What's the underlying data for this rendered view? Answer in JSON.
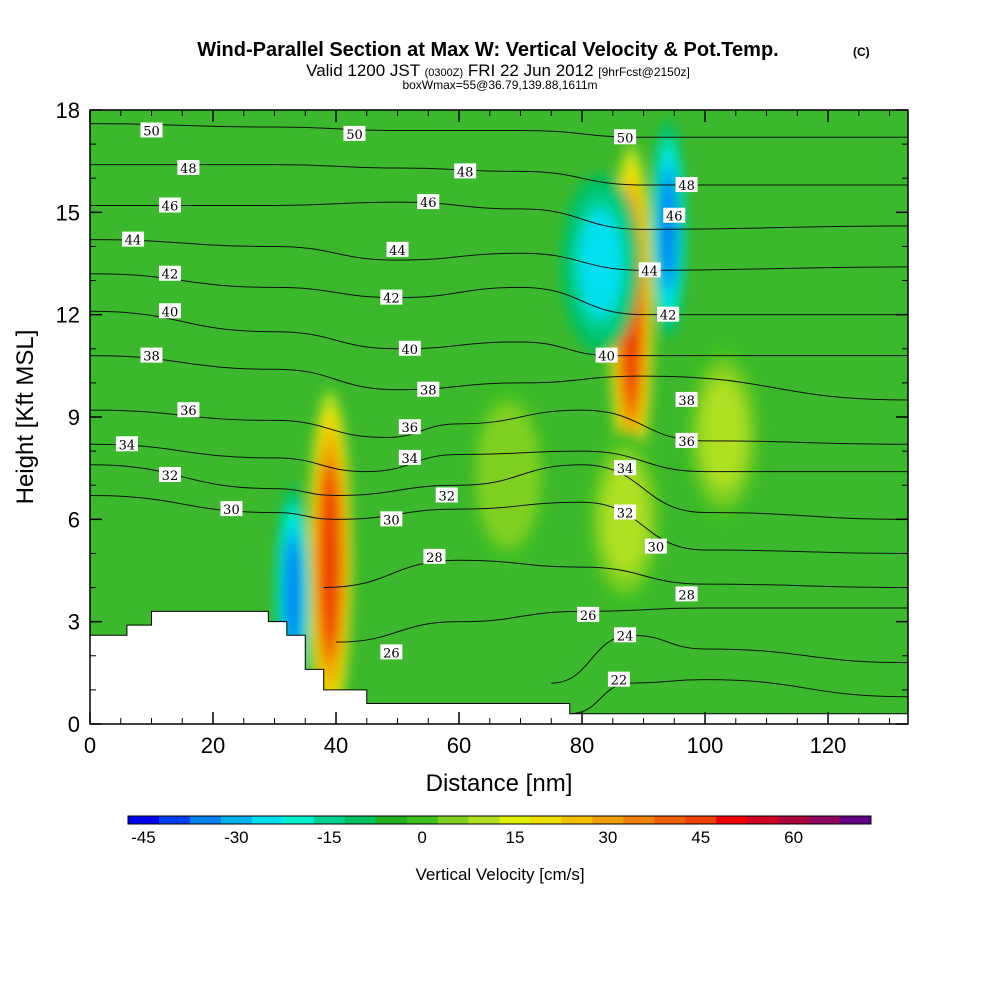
{
  "chart_data": {
    "type": "heatmap",
    "title": "Wind-Parallel Section at Max W: Vertical Velocity & Pot.Temp.",
    "title_mark": "(C)",
    "subtitle": {
      "valid_prefix": "Valid 1200 JST",
      "utc": "(0300Z)",
      "date": "FRI 22 Jun 2012",
      "forecast": "[9hrFcst@2150z]"
    },
    "box_note": "boxWmax=55@36.79,139.88,1611m",
    "xlabel": "Distance [nm]",
    "ylabel": "Height [Kft MSL]",
    "xlim": [
      0,
      133
    ],
    "ylim": [
      0,
      18
    ],
    "x_ticks": [
      0,
      20,
      40,
      60,
      80,
      100,
      120
    ],
    "y_ticks": [
      0,
      3,
      6,
      9,
      12,
      15,
      18
    ],
    "colorbar": {
      "label": "Vertical Velocity [cm/s]",
      "levels": [
        -45,
        -40,
        -35,
        -30,
        -25,
        -20,
        -15,
        -10,
        -5,
        0,
        5,
        10,
        15,
        20,
        25,
        30,
        35,
        40,
        45,
        50,
        55,
        60,
        65,
        70
      ],
      "tick_labels": [
        "-45",
        "-30",
        "-15",
        "0",
        "15",
        "30",
        "45",
        "60"
      ],
      "colors": [
        "#0000f0",
        "#0040f0",
        "#0080f0",
        "#00b0f0",
        "#00e0f0",
        "#00f0d0",
        "#00d090",
        "#00c060",
        "#20b020",
        "#40c020",
        "#80d020",
        "#b0e020",
        "#e0f000",
        "#f0e000",
        "#f0c000",
        "#f0a000",
        "#f08000",
        "#f06000",
        "#f04000",
        "#f00000",
        "#d00020",
        "#b00040",
        "#900060",
        "#600080"
      ]
    },
    "vertical_velocity_features": [
      {
        "label": "updraft",
        "x": 39,
        "y": 4.8,
        "peak": 55
      },
      {
        "label": "downdraft",
        "x": 33,
        "y": 3.8,
        "peak": -35
      },
      {
        "label": "updraft",
        "x": 88,
        "y": 12,
        "peak": 55
      },
      {
        "label": "downdraft",
        "x": 83,
        "y": 13.5,
        "peak": -30
      },
      {
        "label": "downdraft",
        "x": 94,
        "y": 14.5,
        "peak": -35
      },
      {
        "label": "weak updraft",
        "x": 87,
        "y": 6,
        "peak": 15
      },
      {
        "label": "weak updraft",
        "x": 103,
        "y": 8.5,
        "peak": 15
      },
      {
        "label": "weak updraft",
        "x": 68,
        "y": 7.3,
        "peak": 12
      }
    ],
    "potential_temperature_contours": [
      {
        "value": 22,
        "heights": [
          [
            78,
            0.3
          ],
          [
            88,
            1.2
          ],
          [
            100,
            1.3
          ],
          [
            133,
            0.8
          ]
        ]
      },
      {
        "value": 24,
        "heights": [
          [
            75,
            1.2
          ],
          [
            88,
            2.6
          ],
          [
            100,
            2.2
          ],
          [
            133,
            1.8
          ]
        ]
      },
      {
        "value": 26,
        "heights": [
          [
            40,
            2.4
          ],
          [
            60,
            3.0
          ],
          [
            80,
            3.3
          ],
          [
            100,
            3.4
          ],
          [
            133,
            3.4
          ]
        ]
      },
      {
        "value": 28,
        "heights": [
          [
            38,
            4.0
          ],
          [
            60,
            4.8
          ],
          [
            80,
            4.6
          ],
          [
            100,
            4.1
          ],
          [
            133,
            4.0
          ]
        ]
      },
      {
        "value": 30,
        "heights": [
          [
            0,
            6.7
          ],
          [
            30,
            6.2
          ],
          [
            40,
            6.0
          ],
          [
            60,
            6.3
          ],
          [
            80,
            6.5
          ],
          [
            100,
            5.1
          ],
          [
            133,
            5.0
          ]
        ]
      },
      {
        "value": 32,
        "heights": [
          [
            0,
            7.6
          ],
          [
            30,
            6.9
          ],
          [
            40,
            6.7
          ],
          [
            60,
            7.0
          ],
          [
            80,
            7.6
          ],
          [
            100,
            6.2
          ],
          [
            133,
            6.0
          ]
        ]
      },
      {
        "value": 34,
        "heights": [
          [
            0,
            8.2
          ],
          [
            30,
            7.8
          ],
          [
            45,
            7.4
          ],
          [
            60,
            7.9
          ],
          [
            80,
            8.0
          ],
          [
            100,
            7.4
          ],
          [
            133,
            7.4
          ]
        ]
      },
      {
        "value": 36,
        "heights": [
          [
            0,
            9.2
          ],
          [
            30,
            8.9
          ],
          [
            48,
            8.4
          ],
          [
            60,
            8.8
          ],
          [
            80,
            9.2
          ],
          [
            100,
            8.3
          ],
          [
            133,
            8.2
          ]
        ]
      },
      {
        "value": 38,
        "heights": [
          [
            0,
            10.8
          ],
          [
            30,
            10.4
          ],
          [
            50,
            9.8
          ],
          [
            70,
            10.0
          ],
          [
            90,
            10.2
          ],
          [
            133,
            9.5
          ]
        ]
      },
      {
        "value": 40,
        "heights": [
          [
            0,
            12.1
          ],
          [
            30,
            11.5
          ],
          [
            50,
            11.0
          ],
          [
            70,
            11.2
          ],
          [
            85,
            10.8
          ],
          [
            133,
            10.8
          ]
        ]
      },
      {
        "value": 42,
        "heights": [
          [
            0,
            13.2
          ],
          [
            30,
            12.8
          ],
          [
            50,
            12.5
          ],
          [
            70,
            12.8
          ],
          [
            90,
            12.0
          ],
          [
            133,
            12.0
          ]
        ]
      },
      {
        "value": 44,
        "heights": [
          [
            0,
            14.2
          ],
          [
            30,
            14.0
          ],
          [
            50,
            13.6
          ],
          [
            70,
            13.8
          ],
          [
            90,
            13.3
          ],
          [
            133,
            13.4
          ]
        ]
      },
      {
        "value": 46,
        "heights": [
          [
            0,
            15.2
          ],
          [
            30,
            15.2
          ],
          [
            50,
            15.3
          ],
          [
            70,
            15.1
          ],
          [
            90,
            14.5
          ],
          [
            133,
            14.6
          ]
        ]
      },
      {
        "value": 48,
        "heights": [
          [
            0,
            16.4
          ],
          [
            30,
            16.4
          ],
          [
            50,
            16.3
          ],
          [
            70,
            16.2
          ],
          [
            90,
            15.8
          ],
          [
            133,
            15.8
          ]
        ]
      },
      {
        "value": 50,
        "heights": [
          [
            0,
            17.6
          ],
          [
            30,
            17.5
          ],
          [
            50,
            17.4
          ],
          [
            70,
            17.4
          ],
          [
            90,
            17.2
          ],
          [
            133,
            17.2
          ]
        ]
      }
    ],
    "terrain": [
      [
        0,
        2.6
      ],
      [
        6,
        2.6
      ],
      [
        6,
        2.9
      ],
      [
        10,
        2.9
      ],
      [
        10,
        3.3
      ],
      [
        29,
        3.3
      ],
      [
        29,
        3.0
      ],
      [
        32,
        3.0
      ],
      [
        32,
        2.6
      ],
      [
        35,
        2.6
      ],
      [
        35,
        1.6
      ],
      [
        38,
        1.6
      ],
      [
        38,
        1.0
      ],
      [
        45,
        1.0
      ],
      [
        45,
        0.6
      ],
      [
        78,
        0.6
      ],
      [
        78,
        0.3
      ],
      [
        133,
        0.3
      ]
    ],
    "contour_labels": [
      {
        "text": "50",
        "x": 10,
        "y": 17.4
      },
      {
        "text": "50",
        "x": 43,
        "y": 17.3
      },
      {
        "text": "50",
        "x": 87,
        "y": 17.2
      },
      {
        "text": "48",
        "x": 16,
        "y": 16.3
      },
      {
        "text": "48",
        "x": 61,
        "y": 16.2
      },
      {
        "text": "48",
        "x": 97,
        "y": 15.8
      },
      {
        "text": "46",
        "x": 13,
        "y": 15.2
      },
      {
        "text": "46",
        "x": 55,
        "y": 15.3
      },
      {
        "text": "46",
        "x": 95,
        "y": 14.9
      },
      {
        "text": "44",
        "x": 7,
        "y": 14.2
      },
      {
        "text": "44",
        "x": 50,
        "y": 13.9
      },
      {
        "text": "44",
        "x": 91,
        "y": 13.3
      },
      {
        "text": "42",
        "x": 13,
        "y": 13.2
      },
      {
        "text": "42",
        "x": 49,
        "y": 12.5
      },
      {
        "text": "42",
        "x": 94,
        "y": 12.0
      },
      {
        "text": "40",
        "x": 13,
        "y": 12.1
      },
      {
        "text": "40",
        "x": 52,
        "y": 11.0
      },
      {
        "text": "40",
        "x": 84,
        "y": 10.8
      },
      {
        "text": "38",
        "x": 10,
        "y": 10.8
      },
      {
        "text": "38",
        "x": 55,
        "y": 9.8
      },
      {
        "text": "38",
        "x": 97,
        "y": 9.5
      },
      {
        "text": "36",
        "x": 16,
        "y": 9.2
      },
      {
        "text": "36",
        "x": 52,
        "y": 8.7
      },
      {
        "text": "36",
        "x": 97,
        "y": 8.3
      },
      {
        "text": "34",
        "x": 6,
        "y": 8.2
      },
      {
        "text": "34",
        "x": 52,
        "y": 7.8
      },
      {
        "text": "34",
        "x": 87,
        "y": 7.5
      },
      {
        "text": "32",
        "x": 13,
        "y": 7.3
      },
      {
        "text": "32",
        "x": 58,
        "y": 6.7
      },
      {
        "text": "32",
        "x": 87,
        "y": 6.2
      },
      {
        "text": "30",
        "x": 23,
        "y": 6.3
      },
      {
        "text": "30",
        "x": 49,
        "y": 6.0
      },
      {
        "text": "30",
        "x": 92,
        "y": 5.2
      },
      {
        "text": "28",
        "x": 56,
        "y": 4.9
      },
      {
        "text": "28",
        "x": 97,
        "y": 3.8
      },
      {
        "text": "26",
        "x": 49,
        "y": 2.1
      },
      {
        "text": "26",
        "x": 81,
        "y": 3.2
      },
      {
        "text": "24",
        "x": 87,
        "y": 2.6
      },
      {
        "text": "22",
        "x": 86,
        "y": 1.3
      }
    ]
  }
}
